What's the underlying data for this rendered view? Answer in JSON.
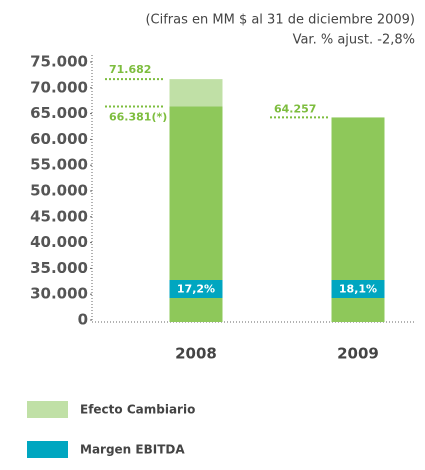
{
  "chart_data": {
    "type": "stacked_bar",
    "subtitle": [
      "(Cifras en MM $ al 31 de diciembre 2009)",
      "Var. % ajust. -2,8%"
    ],
    "categories": [
      "2008",
      "2009"
    ],
    "series": [
      {
        "color": "#8ec85a",
        "values": [
          66381,
          64257
        ],
        "value_labels": [
          "66.381(*)",
          "64.257"
        ]
      },
      {
        "name": "Efecto Cambiario",
        "color": "#c0e0a6",
        "values": [
          5301,
          null
        ]
      }
    ],
    "annotations": [
      {
        "label": "71.682",
        "value": 71682
      }
    ],
    "ebitda": {
      "name": "Margen EBITDA",
      "color": "#00a6c0",
      "values": [
        17.2,
        18.1
      ],
      "value_labels": [
        "17,2%",
        "18,1%"
      ]
    },
    "ylim": [
      0,
      75000
    ],
    "yticks": [
      0,
      {
        "value": 30000,
        "label": "30.000"
      },
      {
        "value": 35000,
        "label": "35.000"
      },
      {
        "value": 40000,
        "label": "40.000"
      },
      {
        "value": 45000,
        "label": "45.000"
      },
      {
        "value": 50000,
        "label": "50.000"
      },
      {
        "value": 55000,
        "label": "55.000"
      },
      {
        "value": 60000,
        "label": "60.000"
      },
      {
        "value": 65000,
        "label": "65.000"
      },
      {
        "value": 70000,
        "label": "70.000"
      },
      {
        "value": 75000,
        "label": "75.000"
      }
    ]
  }
}
